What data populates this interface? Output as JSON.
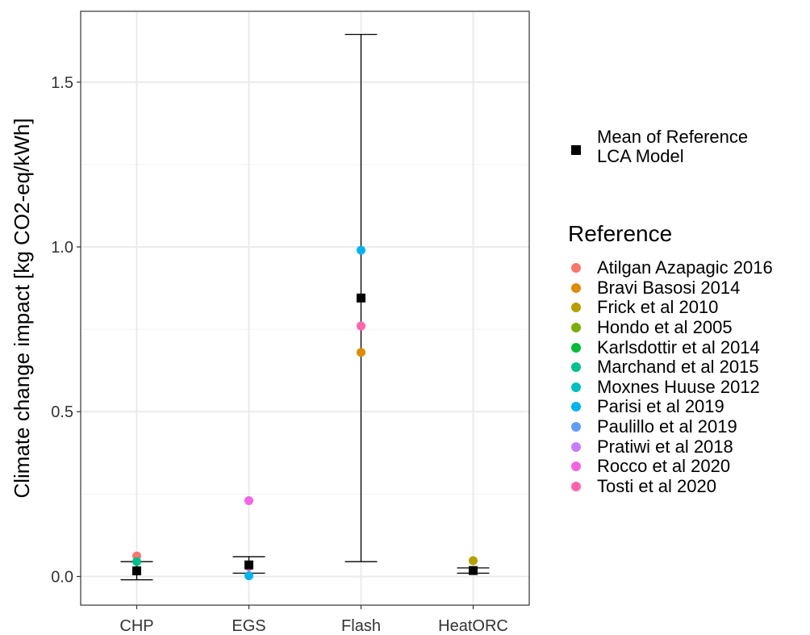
{
  "chart_data": {
    "type": "scatter",
    "title": "",
    "xlabel": "",
    "ylabel": "Climate change impact [kg CO2-eq/kWh]",
    "categories": [
      "CHP",
      "EGS",
      "Flash",
      "HeatORC"
    ],
    "ylim": [
      -0.087,
      1.715
    ],
    "yticks": [
      0.0,
      0.5,
      1.0,
      1.5
    ],
    "ytick_labels": [
      "0.0",
      "0.5",
      "1.0",
      "1.5"
    ],
    "grid": true,
    "points": [
      {
        "category": "CHP",
        "reference": "Atilgan Azapagic 2016",
        "value": 0.062
      },
      {
        "category": "CHP",
        "reference": "Marchand et al 2015",
        "value": 0.045
      },
      {
        "category": "EGS",
        "reference": "Rocco et al 2020",
        "value": 0.23
      },
      {
        "category": "EGS",
        "reference": "Rocco et al 2020",
        "value": 0.03
      },
      {
        "category": "EGS",
        "reference": "Parisi et al 2019",
        "value": 0.002
      },
      {
        "category": "Flash",
        "reference": "Parisi et al 2019",
        "value": 0.99
      },
      {
        "category": "Flash",
        "reference": "Tosti et al 2020",
        "value": 0.76
      },
      {
        "category": "Flash",
        "reference": "Bravi Basosi 2014",
        "value": 0.68
      },
      {
        "category": "HeatORC",
        "reference": "Frick et al 2010",
        "value": 0.048
      }
    ],
    "means": [
      {
        "category": "CHP",
        "value": 0.017,
        "low": -0.01,
        "high": 0.045
      },
      {
        "category": "EGS",
        "value": 0.035,
        "low": 0.01,
        "high": 0.06
      },
      {
        "category": "Flash",
        "value": 0.845,
        "low": 0.045,
        "high": 1.645
      },
      {
        "category": "HeatORC",
        "value": 0.018,
        "low": 0.01,
        "high": 0.026
      }
    ],
    "legend": {
      "mean_label_lines": [
        "Mean of Reference",
        "LCA Model"
      ],
      "reference_title": "Reference",
      "references": [
        {
          "name": "Atilgan Azapagic 2016",
          "color": "#F8766D"
        },
        {
          "name": "Bravi Basosi 2014",
          "color": "#DE8C00"
        },
        {
          "name": "Frick et al 2010",
          "color": "#B79F00"
        },
        {
          "name": "Hondo et al 2005",
          "color": "#7CAE00"
        },
        {
          "name": "Karlsdottir et al 2014",
          "color": "#00BA38"
        },
        {
          "name": "Marchand et al 2015",
          "color": "#00C08B"
        },
        {
          "name": "Moxnes Huuse 2012",
          "color": "#00BFC4"
        },
        {
          "name": "Parisi et al 2019",
          "color": "#00B4F0"
        },
        {
          "name": "Paulillo et al 2019",
          "color": "#619CFF"
        },
        {
          "name": "Pratiwi et al 2018",
          "color": "#C77CFF"
        },
        {
          "name": "Rocco et al 2020",
          "color": "#F564E3"
        },
        {
          "name": "Tosti et al 2020",
          "color": "#FF64B0"
        }
      ]
    }
  }
}
